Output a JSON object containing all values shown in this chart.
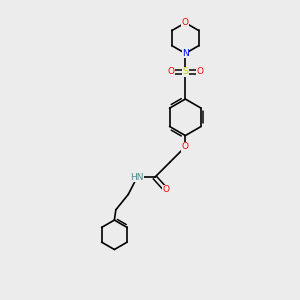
{
  "bg_color": "#ececec",
  "atom_colors": {
    "C": "#000000",
    "N": "#0000ff",
    "O": "#ff0000",
    "S": "#cccc00",
    "H": "#4a9090"
  },
  "bond_color": "#000000",
  "bond_width": 1.2,
  "fontsize": 6.5
}
